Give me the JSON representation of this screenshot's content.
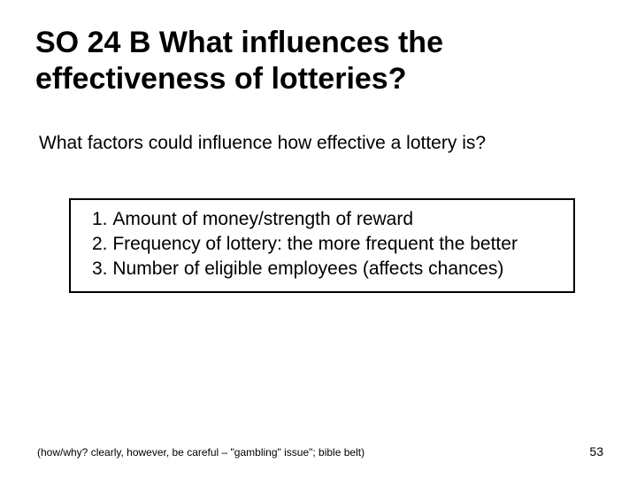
{
  "slide": {
    "title": "SO 24 B What influences the effectiveness of lotteries?",
    "subtitle": "What factors could influence how effective a lottery is?",
    "box_items": [
      "Amount of money/strength of reward",
      "Frequency of lottery: the more frequent the better",
      "Number of eligible employees (affects chances)"
    ],
    "footnote": "(how/why? clearly, however, be careful – \"gambling\" issue\"; bible belt)",
    "page_number": "53"
  },
  "style": {
    "title_fontsize": 34,
    "body_fontsize": 21,
    "footnote_fontsize": 12,
    "pagenum_fontsize": 14,
    "text_color": "#000000",
    "background_color": "#ffffff",
    "box_border_color": "#000000",
    "box_border_width": 2
  }
}
